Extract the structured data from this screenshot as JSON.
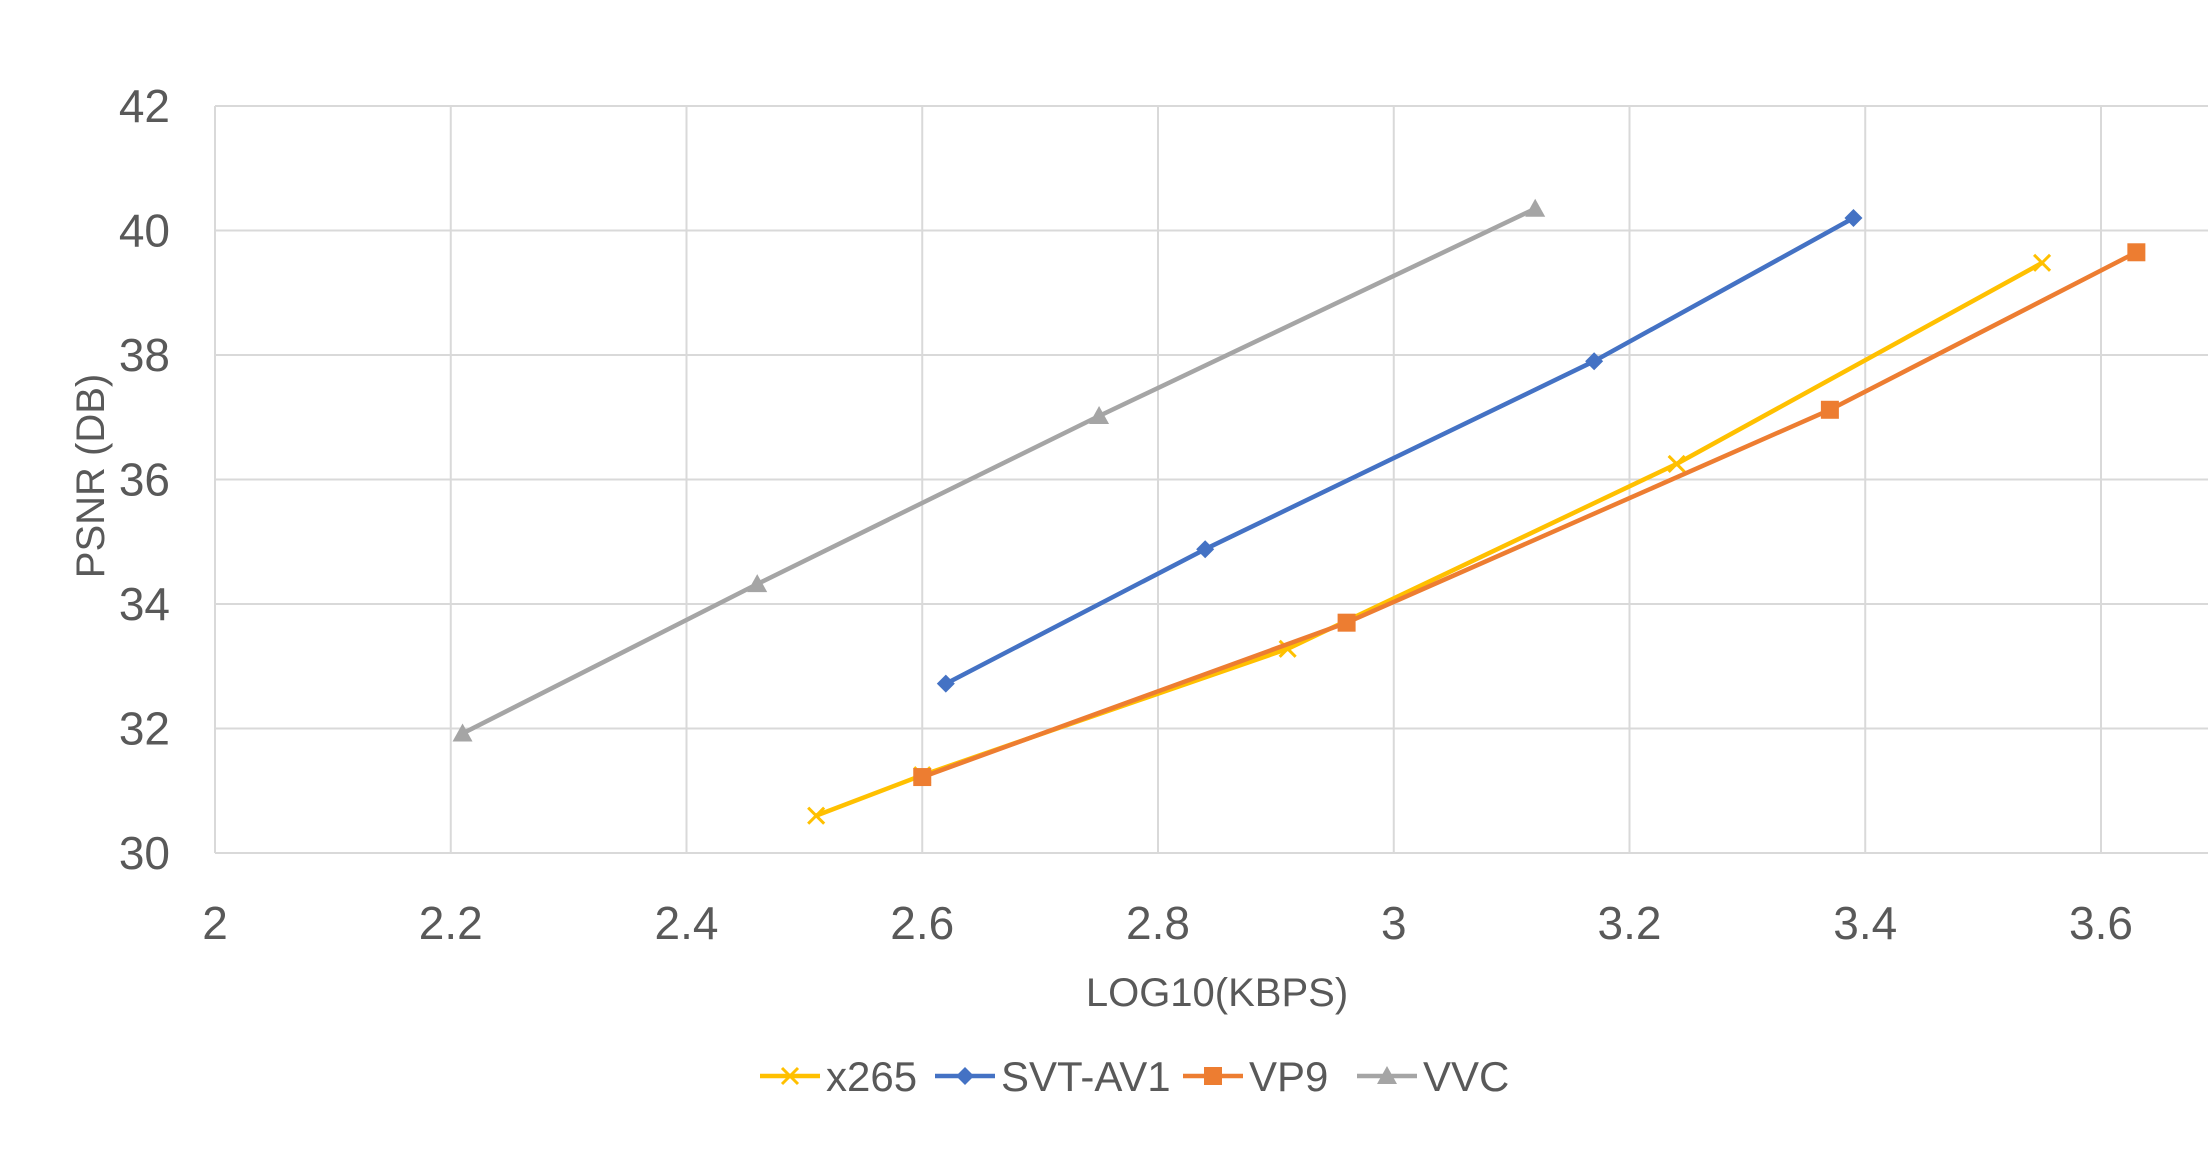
{
  "chart_data": {
    "type": "line",
    "title": "",
    "xlabel": "LOG10(KBPS)",
    "ylabel": "PSNR (DB)",
    "xlim": [
      2,
      3.6
    ],
    "ylim": [
      30,
      42
    ],
    "x_ticks": [
      2,
      2.2,
      2.4,
      2.6,
      2.8,
      3,
      3.2,
      3.4,
      3.6
    ],
    "x_tick_labels": [
      "2",
      "2.2",
      "2.4",
      "2.6",
      "2.8",
      "3",
      "3.2",
      "3.4",
      "3.6"
    ],
    "y_ticks": [
      30,
      32,
      34,
      36,
      38,
      40,
      42
    ],
    "y_tick_labels": [
      "30",
      "32",
      "34",
      "36",
      "38",
      "40",
      "42"
    ],
    "grid": true,
    "legend_position": "bottom",
    "series": [
      {
        "name": "x265",
        "color": "#FFC000",
        "marker": "x",
        "points": [
          [
            2.51,
            30.6
          ],
          [
            2.6,
            31.25
          ],
          [
            2.91,
            33.28
          ],
          [
            3.24,
            36.25
          ],
          [
            3.55,
            39.48
          ]
        ]
      },
      {
        "name": "SVT-AV1",
        "color": "#4472C4",
        "marker": "diamond",
        "points": [
          [
            2.62,
            32.72
          ],
          [
            2.84,
            34.88
          ],
          [
            3.17,
            37.9
          ],
          [
            3.39,
            40.2
          ]
        ]
      },
      {
        "name": "VP9",
        "color": "#ED7D31",
        "marker": "square",
        "points": [
          [
            2.6,
            31.22
          ],
          [
            2.96,
            33.7
          ],
          [
            3.37,
            37.12
          ],
          [
            3.63,
            39.65
          ]
        ]
      },
      {
        "name": "VVC",
        "color": "#A5A5A5",
        "marker": "triangle",
        "points": [
          [
            2.21,
            31.92
          ],
          [
            2.46,
            34.32
          ],
          [
            2.75,
            37.02
          ],
          [
            3.12,
            40.35
          ]
        ]
      }
    ]
  }
}
